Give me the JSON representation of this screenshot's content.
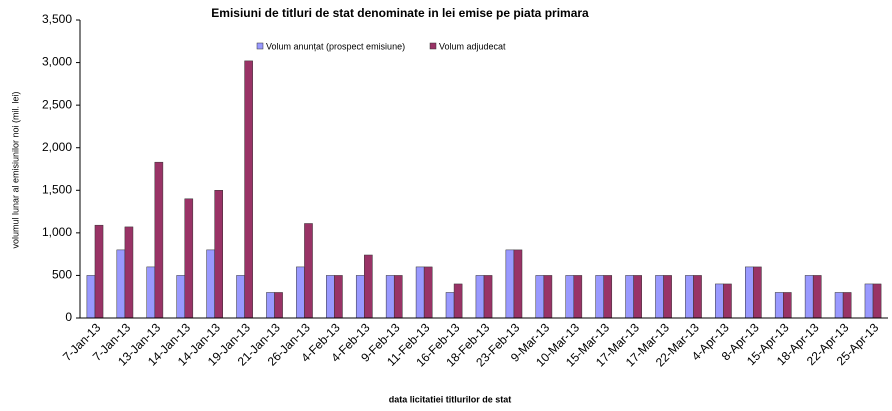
{
  "chart_data": {
    "type": "bar",
    "title": "Emisiuni de titluri de stat denominate in lei emise pe piata primara",
    "x_label": "data  licitatiei  titlurilor de stat",
    "y_label": "volumul lunar al emisiunilor noi (mil. lei)",
    "categories": [
      "7-Jan-13",
      "7-Jan-13",
      "13-Jan-13",
      "14-Jan-13",
      "14-Jan-13",
      "19-Jan-13",
      "21-Jan-13",
      "26-Jan-13",
      "4-Feb-13",
      "4-Feb-13",
      "9-Feb-13",
      "11-Feb-13",
      "16-Feb-13",
      "18-Feb-13",
      "23-Feb-13",
      "9-Mar-13",
      "10-Mar-13",
      "15-Mar-13",
      "17-Mar-13",
      "17-Mar-13",
      "22-Mar-13",
      "4-Apr-13",
      "8-Apr-13",
      "15-Apr-13",
      "18-Apr-13",
      "22-Apr-13",
      "25-Apr-13"
    ],
    "series": [
      {
        "name": "Volum anunțat (prospect emisiune)",
        "color": "#9999ff",
        "values": [
          500,
          800,
          600,
          500,
          800,
          500,
          300,
          600,
          500,
          500,
          500,
          600,
          300,
          500,
          800,
          500,
          500,
          500,
          500,
          500,
          500,
          400,
          600,
          300,
          500,
          300,
          400
        ]
      },
      {
        "name": "Volum adjudecat",
        "color": "#993366",
        "values": [
          1090,
          1070,
          1830,
          1400,
          1500,
          3020,
          300,
          1110,
          500,
          740,
          500,
          600,
          400,
          500,
          800,
          500,
          500,
          500,
          500,
          500,
          500,
          400,
          600,
          300,
          500,
          300,
          400
        ]
      }
    ],
    "ylim": [
      0,
      3500
    ],
    "yticks": [
      0,
      500,
      {
        "value": 1000,
        "label": "1,000"
      },
      {
        "value": 1500,
        "label": "1,500"
      },
      {
        "value": 2000,
        "label": "2,000"
      },
      {
        "value": 2500,
        "label": "2,500"
      },
      {
        "value": 3000,
        "label": "3,000"
      },
      {
        "value": 3500,
        "label": "3,500"
      }
    ],
    "grid": false
  }
}
